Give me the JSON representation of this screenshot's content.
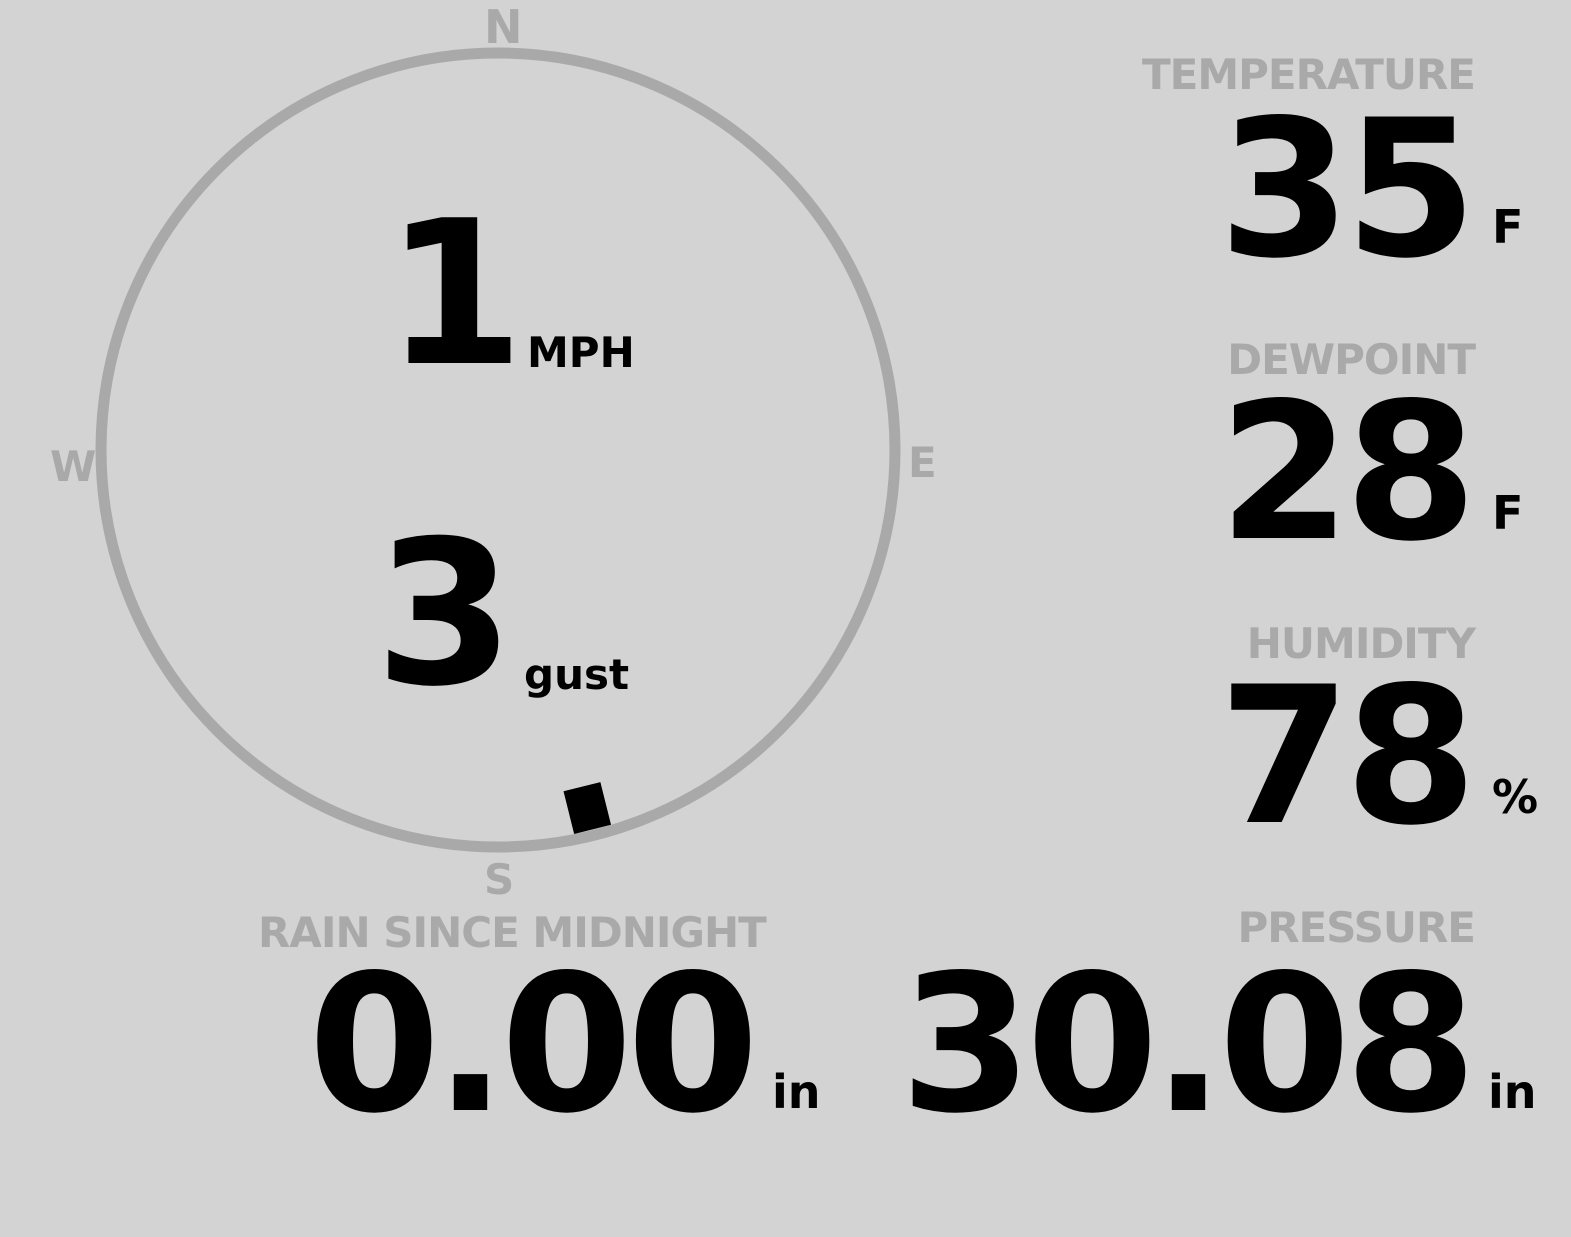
{
  "wind": {
    "speed": "1",
    "speed_unit": "MPH",
    "gust": "3",
    "gust_unit": "gust",
    "direction_deg": 166,
    "cardinals": {
      "n": "N",
      "e": "E",
      "s": "S",
      "w": "W"
    }
  },
  "temperature": {
    "label": "TEMPERATURE",
    "value": "35",
    "unit": "F"
  },
  "dewpoint": {
    "label": "DEWPOINT",
    "value": "28",
    "unit": "F"
  },
  "humidity": {
    "label": "HUMIDITY",
    "value": "78",
    "unit": "%"
  },
  "rain": {
    "label": "RAIN SINCE MIDNIGHT",
    "value": "0.00",
    "unit": "in"
  },
  "pressure": {
    "label": "PRESSURE",
    "value": "30.08",
    "unit": "in"
  },
  "colors": {
    "background": "#d3d3d3",
    "muted": "#a9a9a9",
    "value": "#000000"
  }
}
